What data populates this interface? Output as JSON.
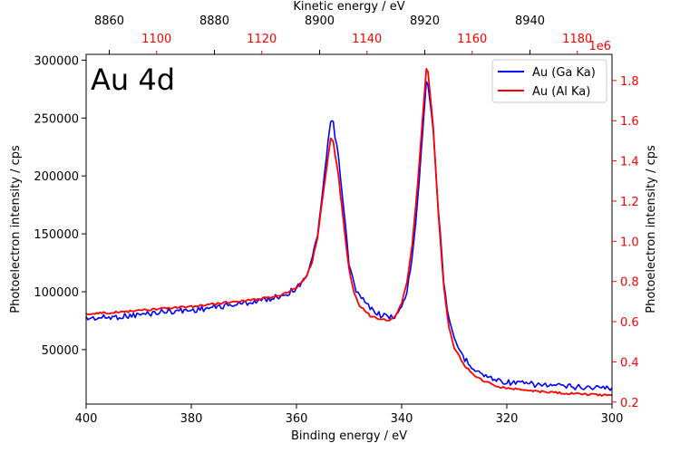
{
  "chart_data": {
    "type": "line",
    "title": "Au 4d",
    "xlabel": "Binding energy / eV",
    "xlim": [
      400,
      300
    ],
    "x_ticks": [
      "400",
      "380",
      "360",
      "340",
      "320",
      "300"
    ],
    "top_axis": {
      "label": "Kinetic energy / eV",
      "black_ticks": [
        "8860",
        "8880",
        "8900",
        "8920",
        "8940"
      ],
      "red_ticks": [
        "1100",
        "1120",
        "1140",
        "1160",
        "1180"
      ]
    },
    "y_left": {
      "label": "Photoelectron intensity / cps",
      "lim": [
        3000,
        305000
      ],
      "ticks": [
        "50000",
        "100000",
        "150000",
        "200000",
        "250000",
        "300000"
      ]
    },
    "y_right": {
      "label": "Photoelectron intensity / cps",
      "lim": [
        0.19,
        1.93
      ],
      "ticks": [
        "0.2",
        "0.4",
        "0.6",
        "0.8",
        "1.0",
        "1.2",
        "1.4",
        "1.6",
        "1.8"
      ],
      "offset": "1e6",
      "color": "#ff0000"
    },
    "legend_position": "top-right",
    "series": [
      {
        "name": "Au (Ga Ka)",
        "color": "#0000ff",
        "axis": "left",
        "x": [
          400,
          395,
          390,
          385,
          380,
          375,
          370,
          365,
          362,
          360,
          358,
          357,
          356,
          355,
          354,
          353.5,
          353,
          352,
          351,
          350,
          349,
          348,
          346,
          344,
          342,
          341,
          340,
          339,
          338,
          337,
          336,
          335.3,
          335,
          334,
          333,
          332,
          331,
          330,
          328,
          326,
          324,
          322,
          320,
          315,
          310,
          305,
          300
        ],
        "y": [
          77000,
          78000,
          80000,
          83000,
          84000,
          87000,
          90000,
          94000,
          98000,
          103000,
          115000,
          128000,
          150000,
          185000,
          230000,
          246000,
          245000,
          215000,
          170000,
          125000,
          105000,
          96000,
          86000,
          80000,
          78000,
          80000,
          86000,
          100000,
          130000,
          175000,
          240000,
          283000,
          280000,
          240000,
          170000,
          110000,
          75000,
          58000,
          42000,
          33000,
          27000,
          24000,
          22000,
          20000,
          18500,
          17500,
          17000
        ]
      },
      {
        "name": "Au (Al Ka)",
        "color": "#ff0000",
        "axis": "right",
        "x": [
          400,
          395,
          390,
          385,
          380,
          375,
          370,
          365,
          362,
          360,
          358,
          357,
          356,
          355,
          354,
          353.5,
          353,
          352,
          351,
          350,
          349,
          348,
          346,
          344,
          342,
          341,
          340,
          339,
          338,
          337,
          336,
          335.3,
          335,
          334,
          333,
          332,
          331,
          330,
          328,
          326,
          324,
          322,
          320,
          315,
          310,
          305,
          300
        ],
        "y": [
          0.64,
          0.645,
          0.655,
          0.665,
          0.675,
          0.69,
          0.705,
          0.72,
          0.74,
          0.77,
          0.83,
          0.9,
          1.02,
          1.22,
          1.42,
          1.51,
          1.49,
          1.32,
          1.08,
          0.86,
          0.74,
          0.68,
          0.63,
          0.61,
          0.61,
          0.64,
          0.69,
          0.79,
          0.98,
          1.27,
          1.62,
          1.86,
          1.84,
          1.57,
          1.13,
          0.78,
          0.57,
          0.47,
          0.38,
          0.33,
          0.3,
          0.28,
          0.27,
          0.255,
          0.245,
          0.238,
          0.235
        ]
      }
    ]
  }
}
